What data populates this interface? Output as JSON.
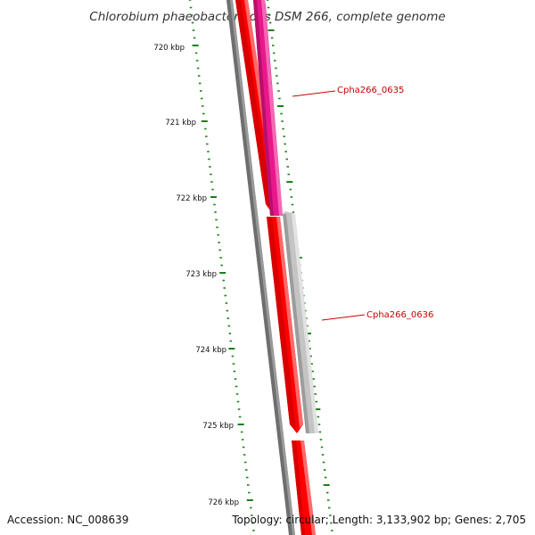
{
  "title": "Chlorobium phaeobacteroides DSM 266, complete genome",
  "footer": {
    "accession": "Accession: NC_008639",
    "summary": "Topology: circular; Length: 3,133,902 bp; Genes: 2,705"
  },
  "axis": {
    "ticks": [
      {
        "label": "720 kbp"
      },
      {
        "label": "721 kbp"
      },
      {
        "label": "722 kbp"
      },
      {
        "label": "723 kbp"
      },
      {
        "label": "724 kbp"
      },
      {
        "label": "725 kbp"
      },
      {
        "label": "726 kbp"
      }
    ]
  },
  "genes": [
    {
      "name": "Cpha266_0635",
      "color": "#e8188c",
      "labeled": true
    },
    {
      "name": "Cpha266_0636",
      "color": "#c4c4c4",
      "labeled": true
    }
  ],
  "colors": {
    "backbone": "#777777",
    "forward_strand": "#ff0000",
    "gene_label": "#cc0000",
    "tick": "#1a7f1a"
  }
}
